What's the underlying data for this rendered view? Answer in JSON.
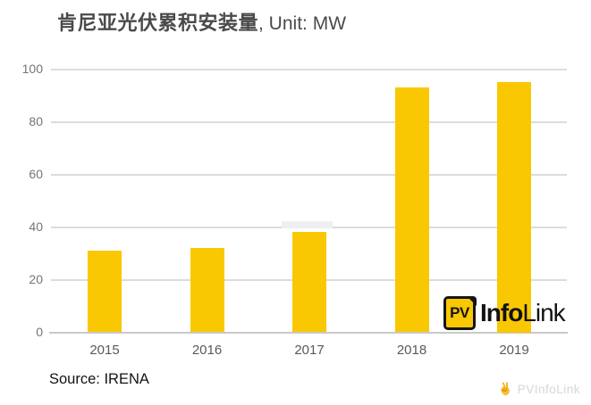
{
  "title": {
    "main": "肯尼亚光伏累积安装量",
    "suffix": ", Unit: MW"
  },
  "source": "Source: IRENA",
  "logo": {
    "badge": "PV",
    "name_bold": "Info",
    "name_regular": "Link"
  },
  "watermark": {
    "icon": "hand-gesture-icon",
    "text": "PVInfoLink"
  },
  "colors": {
    "bar": "#f9c802",
    "title_text": "#4a4a4a",
    "y_tick_label": "#757575",
    "x_tick_label": "#595959",
    "gridline": "#dcdcdc",
    "axis_line": "#c9c9c9",
    "source_text": "#121212",
    "logo_black": "#151515",
    "watermark_text": "#d3d7da"
  },
  "chart_data": {
    "type": "bar",
    "categories": [
      "2015",
      "2016",
      "2017",
      "2018",
      "2019"
    ],
    "values": [
      31,
      32,
      38,
      93,
      95
    ],
    "series_name": "肯尼亚光伏累积安装量",
    "title": "肯尼亚光伏累积安装量, Unit: MW",
    "xlabel": "",
    "ylabel": "",
    "unit": "MW",
    "yticks": [
      0,
      20,
      40,
      60,
      80,
      100
    ],
    "ylim": [
      0,
      100
    ],
    "grid": true,
    "legend": "none"
  }
}
